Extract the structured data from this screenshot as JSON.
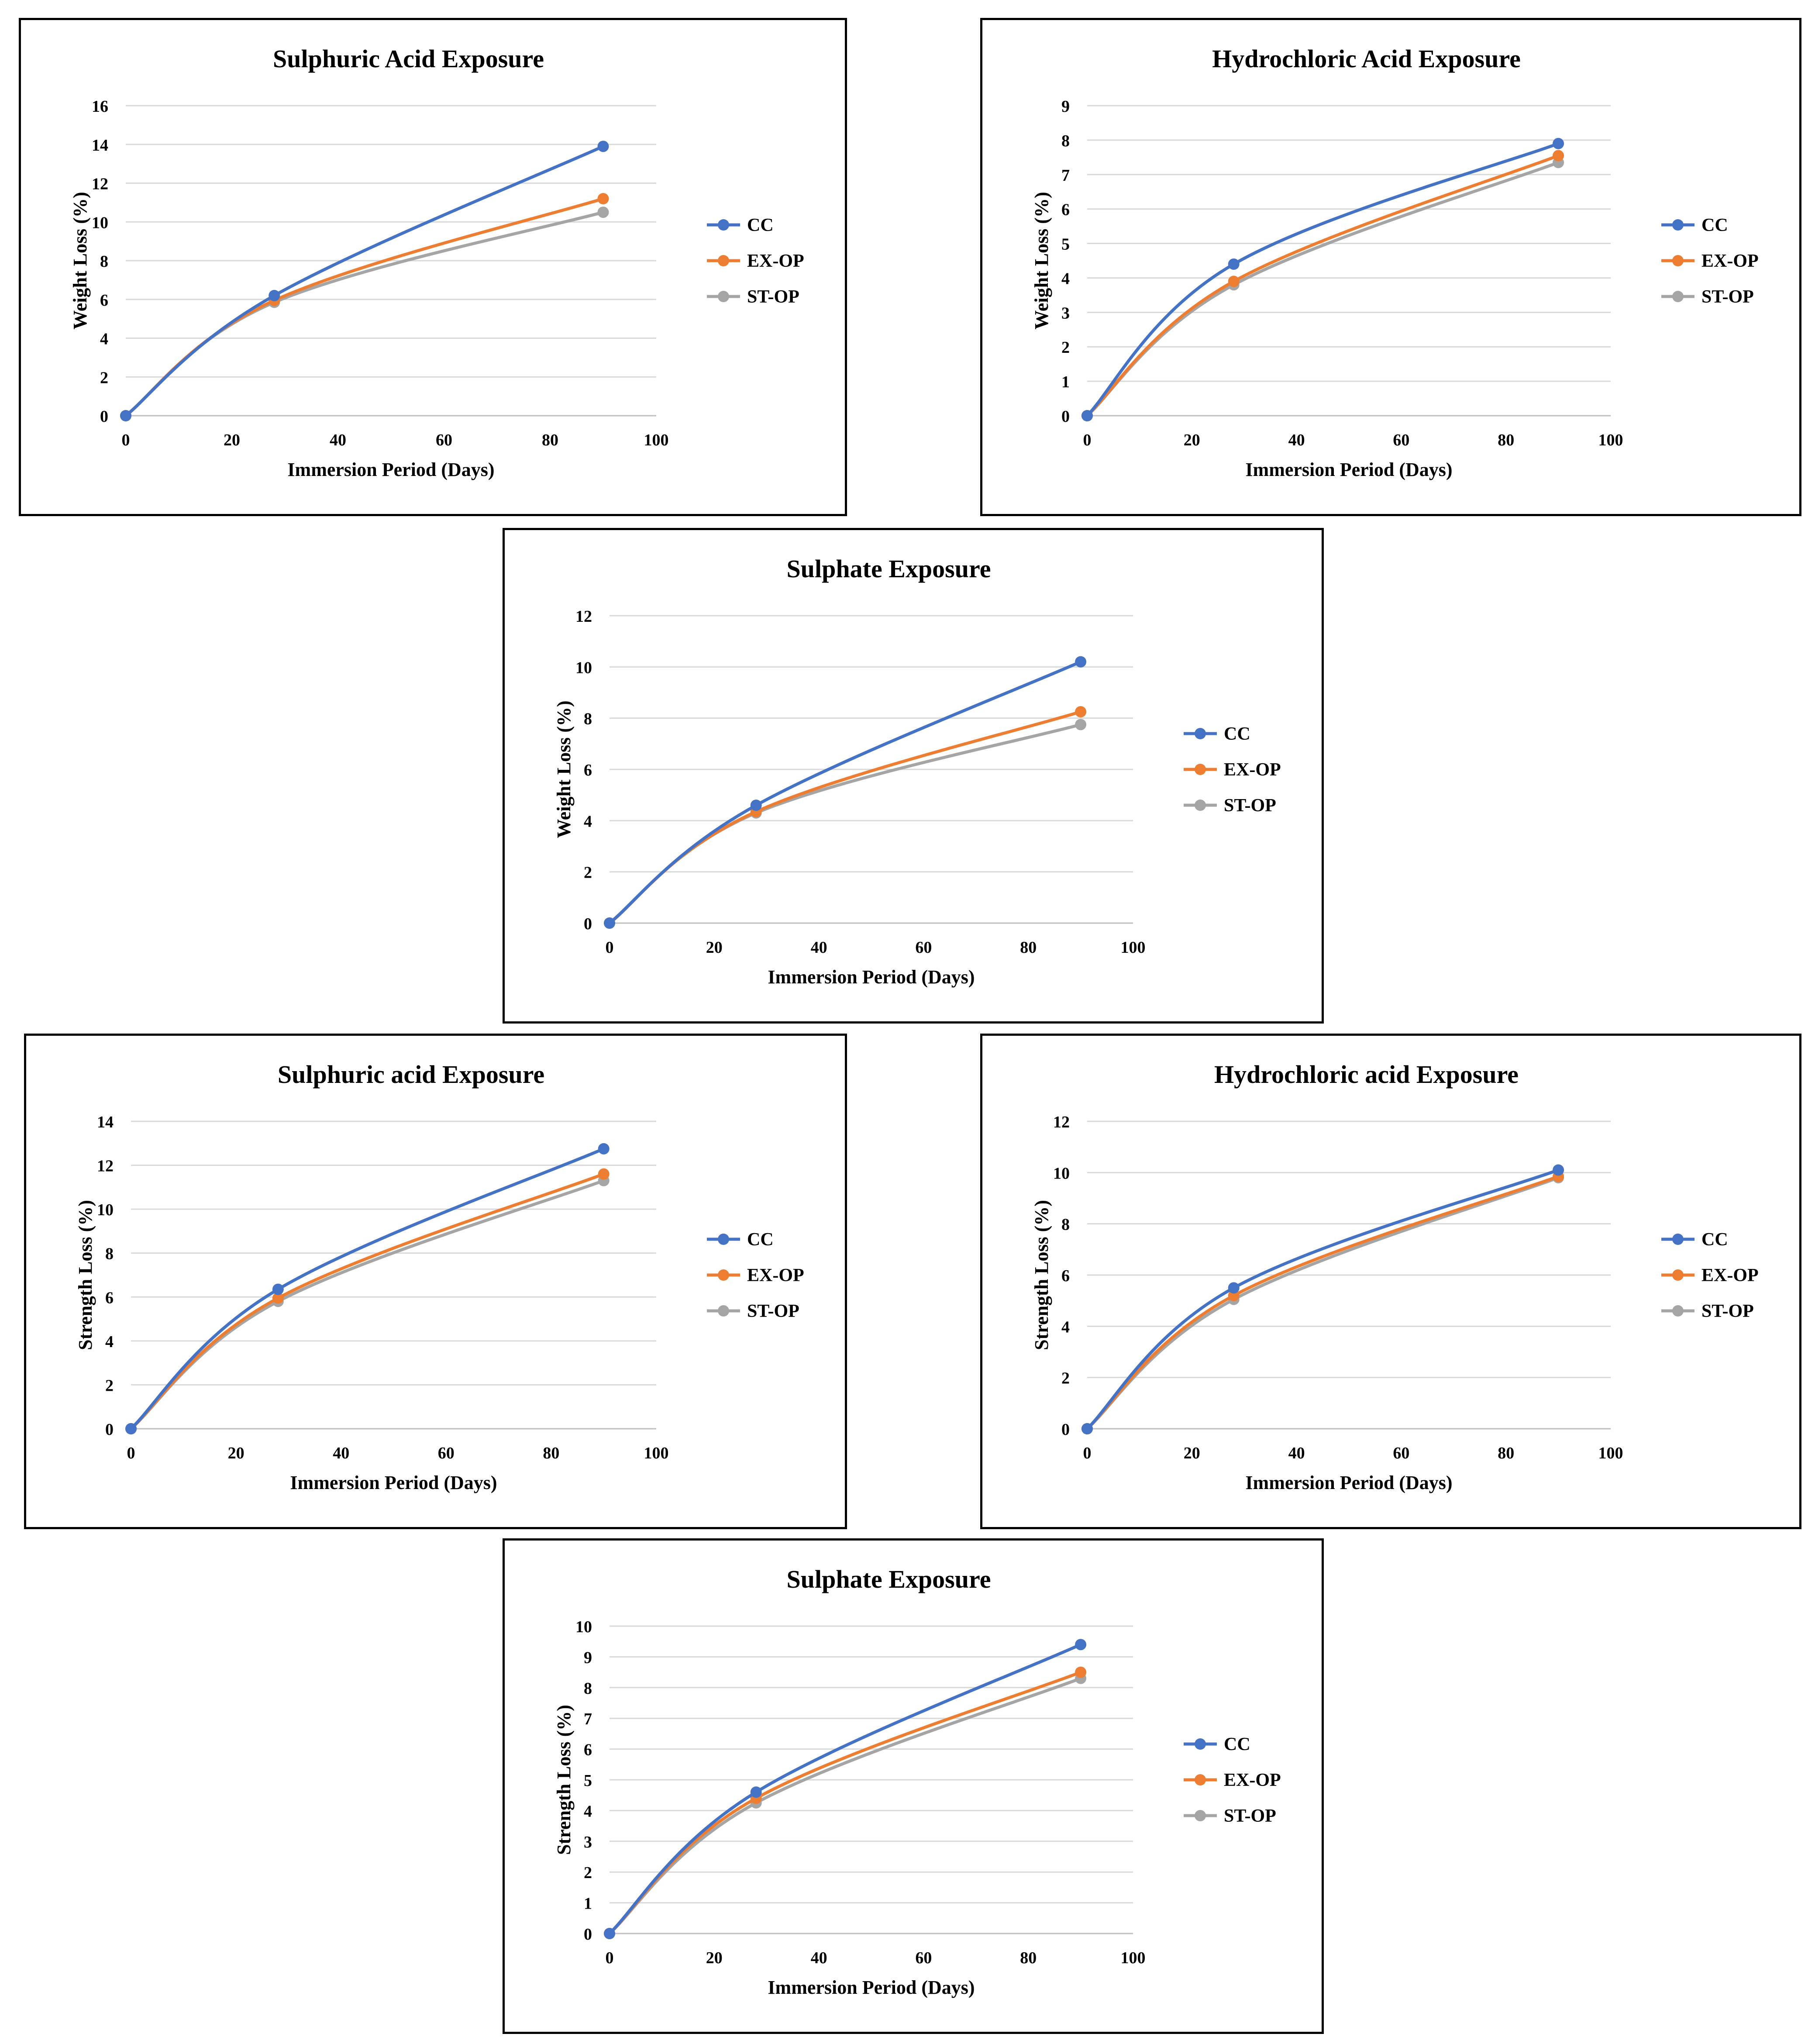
{
  "legend_colors": {
    "CC": "#4472C4",
    "EX-OP": "#ED7D31",
    "ST-OP": "#A5A5A5"
  },
  "chart_data": [
    {
      "type": "line",
      "title": "Sulphuric Acid Exposure",
      "xlabel": "Immersion Period (Days)",
      "ylabel": "Weight Loss (%)",
      "xlim": [
        0,
        100
      ],
      "xticks": [
        0,
        20,
        40,
        60,
        80,
        100
      ],
      "ylim": [
        0,
        16
      ],
      "yticks": [
        0,
        2,
        4,
        6,
        8,
        10,
        12,
        14,
        16
      ],
      "grid": true,
      "legend": "right",
      "x": [
        0,
        28,
        90
      ],
      "series": [
        {
          "name": "CC",
          "color": "#4472C4",
          "values": [
            0,
            6.2,
            13.9
          ]
        },
        {
          "name": "EX-OP",
          "color": "#ED7D31",
          "values": [
            0,
            5.95,
            11.2
          ]
        },
        {
          "name": "ST-OP",
          "color": "#A5A5A5",
          "values": [
            0,
            5.85,
            10.5
          ]
        }
      ]
    },
    {
      "type": "line",
      "title": "Hydrochloric Acid Exposure",
      "xlabel": "Immersion Period (Days)",
      "ylabel": "Weight Loss (%)",
      "xlim": [
        0,
        100
      ],
      "xticks": [
        0,
        20,
        40,
        60,
        80,
        100
      ],
      "ylim": [
        0,
        9
      ],
      "yticks": [
        0,
        1,
        2,
        3,
        4,
        5,
        6,
        7,
        8,
        9
      ],
      "grid": true,
      "legend": "right",
      "x": [
        0,
        28,
        90
      ],
      "series": [
        {
          "name": "CC",
          "color": "#4472C4",
          "values": [
            0,
            4.4,
            7.9
          ]
        },
        {
          "name": "EX-OP",
          "color": "#ED7D31",
          "values": [
            0,
            3.9,
            7.55
          ]
        },
        {
          "name": "ST-OP",
          "color": "#A5A5A5",
          "values": [
            0,
            3.8,
            7.35
          ]
        }
      ]
    },
    {
      "type": "line",
      "title": "Sulphate Exposure",
      "xlabel": "Immersion Period (Days)",
      "ylabel": "Weight Loss (%)",
      "xlim": [
        0,
        100
      ],
      "xticks": [
        0,
        20,
        40,
        60,
        80,
        100
      ],
      "ylim": [
        0,
        12
      ],
      "yticks": [
        0,
        2,
        4,
        6,
        8,
        10,
        12
      ],
      "grid": true,
      "legend": "right",
      "x": [
        0,
        28,
        90
      ],
      "series": [
        {
          "name": "CC",
          "color": "#4472C4",
          "values": [
            0,
            4.6,
            10.2
          ]
        },
        {
          "name": "EX-OP",
          "color": "#ED7D31",
          "values": [
            0,
            4.35,
            8.25
          ]
        },
        {
          "name": "ST-OP",
          "color": "#A5A5A5",
          "values": [
            0,
            4.3,
            7.75
          ]
        }
      ]
    },
    {
      "type": "line",
      "title": "Sulphuric acid Exposure",
      "xlabel": "Immersion Period (Days)",
      "ylabel": "Strength Loss (%)",
      "xlim": [
        0,
        100
      ],
      "xticks": [
        0,
        20,
        40,
        60,
        80,
        100
      ],
      "ylim": [
        0,
        14
      ],
      "yticks": [
        0,
        2,
        4,
        6,
        8,
        10,
        12,
        14
      ],
      "grid": true,
      "legend": "right",
      "x": [
        0,
        28,
        90
      ],
      "series": [
        {
          "name": "CC",
          "color": "#4472C4",
          "values": [
            0,
            6.35,
            12.75
          ]
        },
        {
          "name": "EX-OP",
          "color": "#ED7D31",
          "values": [
            0,
            5.95,
            11.6
          ]
        },
        {
          "name": "ST-OP",
          "color": "#A5A5A5",
          "values": [
            0,
            5.8,
            11.3
          ]
        }
      ]
    },
    {
      "type": "line",
      "title": "Hydrochloric acid Exposure",
      "xlabel": "Immersion Period (Days)",
      "ylabel": "Strength Loss (%)",
      "xlim": [
        0,
        100
      ],
      "xticks": [
        0,
        20,
        40,
        60,
        80,
        100
      ],
      "ylim": [
        0,
        12
      ],
      "yticks": [
        0,
        2,
        4,
        6,
        8,
        10,
        12
      ],
      "grid": true,
      "legend": "right",
      "x": [
        0,
        28,
        90
      ],
      "series": [
        {
          "name": "CC",
          "color": "#4472C4",
          "values": [
            0,
            5.5,
            10.1
          ]
        },
        {
          "name": "EX-OP",
          "color": "#ED7D31",
          "values": [
            0,
            5.2,
            9.85
          ]
        },
        {
          "name": "ST-OP",
          "color": "#A5A5A5",
          "values": [
            0,
            5.05,
            9.8
          ]
        }
      ]
    },
    {
      "type": "line",
      "title": "Sulphate Exposure",
      "xlabel": "Immersion Period (Days)",
      "ylabel": "Strength Loss (%)",
      "xlim": [
        0,
        100
      ],
      "xticks": [
        0,
        20,
        40,
        60,
        80,
        100
      ],
      "ylim": [
        0,
        10
      ],
      "yticks": [
        0,
        1,
        2,
        3,
        4,
        5,
        6,
        7,
        8,
        9,
        10
      ],
      "grid": true,
      "legend": "right",
      "x": [
        0,
        28,
        90
      ],
      "series": [
        {
          "name": "CC",
          "color": "#4472C4",
          "values": [
            0,
            4.6,
            9.4
          ]
        },
        {
          "name": "EX-OP",
          "color": "#ED7D31",
          "values": [
            0,
            4.4,
            8.5
          ]
        },
        {
          "name": "ST-OP",
          "color": "#A5A5A5",
          "values": [
            0,
            4.25,
            8.3
          ]
        }
      ]
    }
  ]
}
